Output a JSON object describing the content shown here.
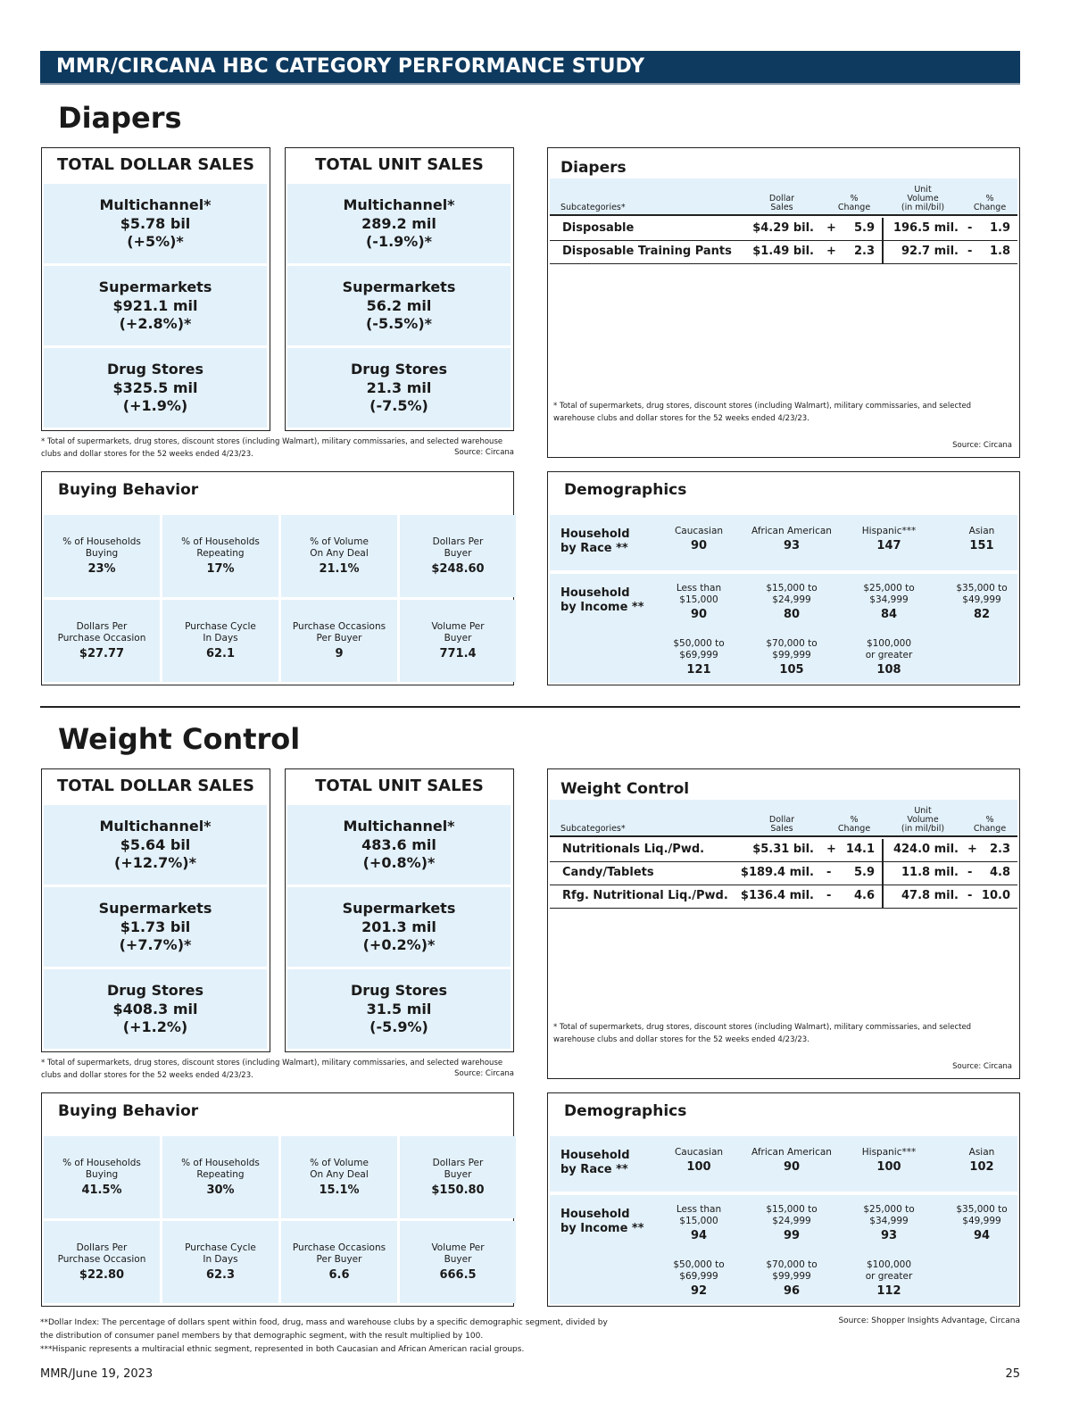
{
  "header": "MMR/CIRCANA HBC CATEGORY PERFORMANCE STUDY",
  "sections": [
    {
      "title": "Diapers",
      "dollar_sales": {
        "heading": "TOTAL DOLLAR SALES",
        "cells": [
          {
            "channel": "Multichannel*",
            "value": "$5.78 bil",
            "change": "(+5%)*"
          },
          {
            "channel": "Supermarkets",
            "value": "$921.1 mil",
            "change": "(+2.8%)*"
          },
          {
            "channel": "Drug Stores",
            "value": "$325.5 mil",
            "change": "(+1.9%)"
          }
        ]
      },
      "unit_sales": {
        "heading": "TOTAL UNIT SALES",
        "cells": [
          {
            "channel": "Multichannel*",
            "value": "289.2 mil",
            "change": "(-1.9%)*"
          },
          {
            "channel": "Supermarkets",
            "value": "56.2 mil",
            "change": "(-5.5%)*"
          },
          {
            "channel": "Drug Stores",
            "value": "21.3 mil",
            "change": "(-7.5%)"
          }
        ]
      },
      "sales_note": "* Total of supermarkets, drug stores, discount stores (including Walmart), military commissaries, and selected warehouse clubs and dollar stores for the 52 weeks ended 4/23/23.",
      "sales_source": "Source: Circana",
      "subcategories": {
        "title": "Diapers",
        "columns": [
          [
            "Subcategories*"
          ],
          [
            "Dollar",
            "Sales"
          ],
          [
            "%",
            "Change"
          ],
          [
            "Unit",
            "Volume",
            "(in mil/bil)"
          ],
          [
            "%",
            "Change"
          ]
        ],
        "rows": [
          [
            "Disposable",
            "$4.29 bil.",
            "+",
            "5.9",
            "196.5 mil.",
            "-",
            "1.9"
          ],
          [
            "Disposable Training Pants",
            "$1.49 bil.",
            "+",
            "2.3",
            "92.7 mil.",
            "-",
            "1.8"
          ]
        ],
        "note": "* Total of supermarkets, drug stores, discount stores (including Walmart), military commissaries, and selected warehouse clubs and dollar stores for the 52 weeks ended 4/23/23.",
        "source": "Source: Circana"
      },
      "buying_behavior": {
        "title": "Buying Behavior",
        "items": [
          {
            "label": [
              "% of Households",
              "Buying"
            ],
            "value": "23%"
          },
          {
            "label": [
              "% of Households",
              "Repeating"
            ],
            "value": "17%"
          },
          {
            "label": [
              "% of Volume",
              "On Any Deal"
            ],
            "value": "21.1%"
          },
          {
            "label": [
              "Dollars Per",
              "Buyer"
            ],
            "value": "$248.60"
          },
          {
            "label": [
              "Dollars Per",
              "Purchase Occasion"
            ],
            "value": "$27.77"
          },
          {
            "label": [
              "Purchase Cycle",
              "In Days"
            ],
            "value": "62.1"
          },
          {
            "label": [
              "Purchase Occasions",
              "Per Buyer"
            ],
            "value": "9"
          },
          {
            "label": [
              "Volume Per",
              "Buyer"
            ],
            "value": "771.4"
          }
        ]
      },
      "demographics": {
        "title": "Demographics",
        "race": {
          "label": [
            "Household",
            "by Race **"
          ],
          "groups": [
            {
              "label": [
                "Caucasian"
              ],
              "value": "90"
            },
            {
              "label": [
                "African American"
              ],
              "value": "93"
            },
            {
              "label": [
                "Hispanic***"
              ],
              "value": "147"
            },
            {
              "label": [
                "Asian"
              ],
              "value": "151"
            }
          ]
        },
        "income": {
          "label": [
            "Household",
            "by Income **"
          ],
          "groups": [
            {
              "label": [
                "Less than",
                "$15,000"
              ],
              "value": "90"
            },
            {
              "label": [
                "$15,000 to",
                "$24,999"
              ],
              "value": "80"
            },
            {
              "label": [
                "$25,000 to",
                "$34,999"
              ],
              "value": "84"
            },
            {
              "label": [
                "$35,000 to",
                "$49,999"
              ],
              "value": "82"
            },
            {
              "label": [
                "$50,000 to",
                "$69,999"
              ],
              "value": "121"
            },
            {
              "label": [
                "$70,000 to",
                "$99,999"
              ],
              "value": "105"
            },
            {
              "label": [
                "$100,000",
                "or greater"
              ],
              "value": "108"
            }
          ]
        }
      }
    },
    {
      "title": "Weight Control",
      "dollar_sales": {
        "heading": "TOTAL DOLLAR SALES",
        "cells": [
          {
            "channel": "Multichannel*",
            "value": "$5.64 bil",
            "change": "(+12.7%)*"
          },
          {
            "channel": "Supermarkets",
            "value": "$1.73 bil",
            "change": "(+7.7%)*"
          },
          {
            "channel": "Drug Stores",
            "value": "$408.3 mil",
            "change": "(+1.2%)"
          }
        ]
      },
      "unit_sales": {
        "heading": "TOTAL UNIT SALES",
        "cells": [
          {
            "channel": "Multichannel*",
            "value": "483.6 mil",
            "change": "(+0.8%)*"
          },
          {
            "channel": "Supermarkets",
            "value": "201.3 mil",
            "change": "(+0.2%)*"
          },
          {
            "channel": "Drug Stores",
            "value": "31.5 mil",
            "change": "(-5.9%)"
          }
        ]
      },
      "sales_note": "* Total of supermarkets, drug stores, discount stores (including Walmart), military commissaries, and selected warehouse clubs and dollar stores for the 52 weeks ended 4/23/23.",
      "sales_source": "Source: Circana",
      "subcategories": {
        "title": "Weight Control",
        "columns": [
          [
            "Subcategories*"
          ],
          [
            "Dollar",
            "Sales"
          ],
          [
            "%",
            "Change"
          ],
          [
            "Unit",
            "Volume",
            "(in mil/bil)"
          ],
          [
            "%",
            "Change"
          ]
        ],
        "rows": [
          [
            "Nutritionals Liq./Pwd.",
            "$5.31 bil.",
            "+",
            "14.1",
            "424.0 mil.",
            "+",
            "2.3"
          ],
          [
            "Candy/Tablets",
            "$189.4 mil.",
            "-",
            "5.9",
            "11.8 mil.",
            "-",
            "4.8"
          ],
          [
            "Rfg. Nutritional Liq./Pwd.",
            "$136.4 mil.",
            "-",
            "4.6",
            "47.8 mil.",
            "-",
            "10.0"
          ]
        ],
        "note": "* Total of supermarkets, drug stores, discount stores (including Walmart), military commissaries, and selected warehouse clubs and dollar stores for the 52 weeks ended 4/23/23.",
        "source": "Source: Circana"
      },
      "buying_behavior": {
        "title": "Buying Behavior",
        "items": [
          {
            "label": [
              "% of Households",
              "Buying"
            ],
            "value": "41.5%"
          },
          {
            "label": [
              "% of Households",
              "Repeating"
            ],
            "value": "30%"
          },
          {
            "label": [
              "% of Volume",
              "On Any Deal"
            ],
            "value": "15.1%"
          },
          {
            "label": [
              "Dollars Per",
              "Buyer"
            ],
            "value": "$150.80"
          },
          {
            "label": [
              "Dollars Per",
              "Purchase Occasion"
            ],
            "value": "$22.80"
          },
          {
            "label": [
              "Purchase Cycle",
              "In Days"
            ],
            "value": "62.3"
          },
          {
            "label": [
              "Purchase Occasions",
              "Per Buyer"
            ],
            "value": "6.6"
          },
          {
            "label": [
              "Volume Per",
              "Buyer"
            ],
            "value": "666.5"
          }
        ]
      },
      "demographics": {
        "title": "Demographics",
        "race": {
          "label": [
            "Household",
            "by Race **"
          ],
          "groups": [
            {
              "label": [
                "Caucasian"
              ],
              "value": "100"
            },
            {
              "label": [
                "African American"
              ],
              "value": "90"
            },
            {
              "label": [
                "Hispanic***"
              ],
              "value": "100"
            },
            {
              "label": [
                "Asian"
              ],
              "value": "102"
            }
          ]
        },
        "income": {
          "label": [
            "Household",
            "by Income **"
          ],
          "groups": [
            {
              "label": [
                "Less than",
                "$15,000"
              ],
              "value": "94"
            },
            {
              "label": [
                "$15,000 to",
                "$24,999"
              ],
              "value": "99"
            },
            {
              "label": [
                "$25,000 to",
                "$34,999"
              ],
              "value": "93"
            },
            {
              "label": [
                "$35,000 to",
                "$49,999"
              ],
              "value": "94"
            },
            {
              "label": [
                "$50,000 to",
                "$69,999"
              ],
              "value": "92"
            },
            {
              "label": [
                "$70,000 to",
                "$99,999"
              ],
              "value": "96"
            },
            {
              "label": [
                "$100,000",
                "or greater"
              ],
              "value": "112"
            }
          ]
        }
      }
    }
  ],
  "footnotes": [
    "**Dollar Index: The percentage of dollars spent within food, drug, mass and warehouse clubs by a specific demographic segment, divided by the distribution of consumer panel members by that demographic segment, with the result multiplied by 100.",
    "***Hispanic represents a multiracial ethnic segment, represented in both Caucasian and African American racial groups."
  ],
  "footnote_source": "Source: Shopper Insights Advantage, Circana",
  "footer_left": "MMR/June 19, 2023",
  "page_number": "25"
}
